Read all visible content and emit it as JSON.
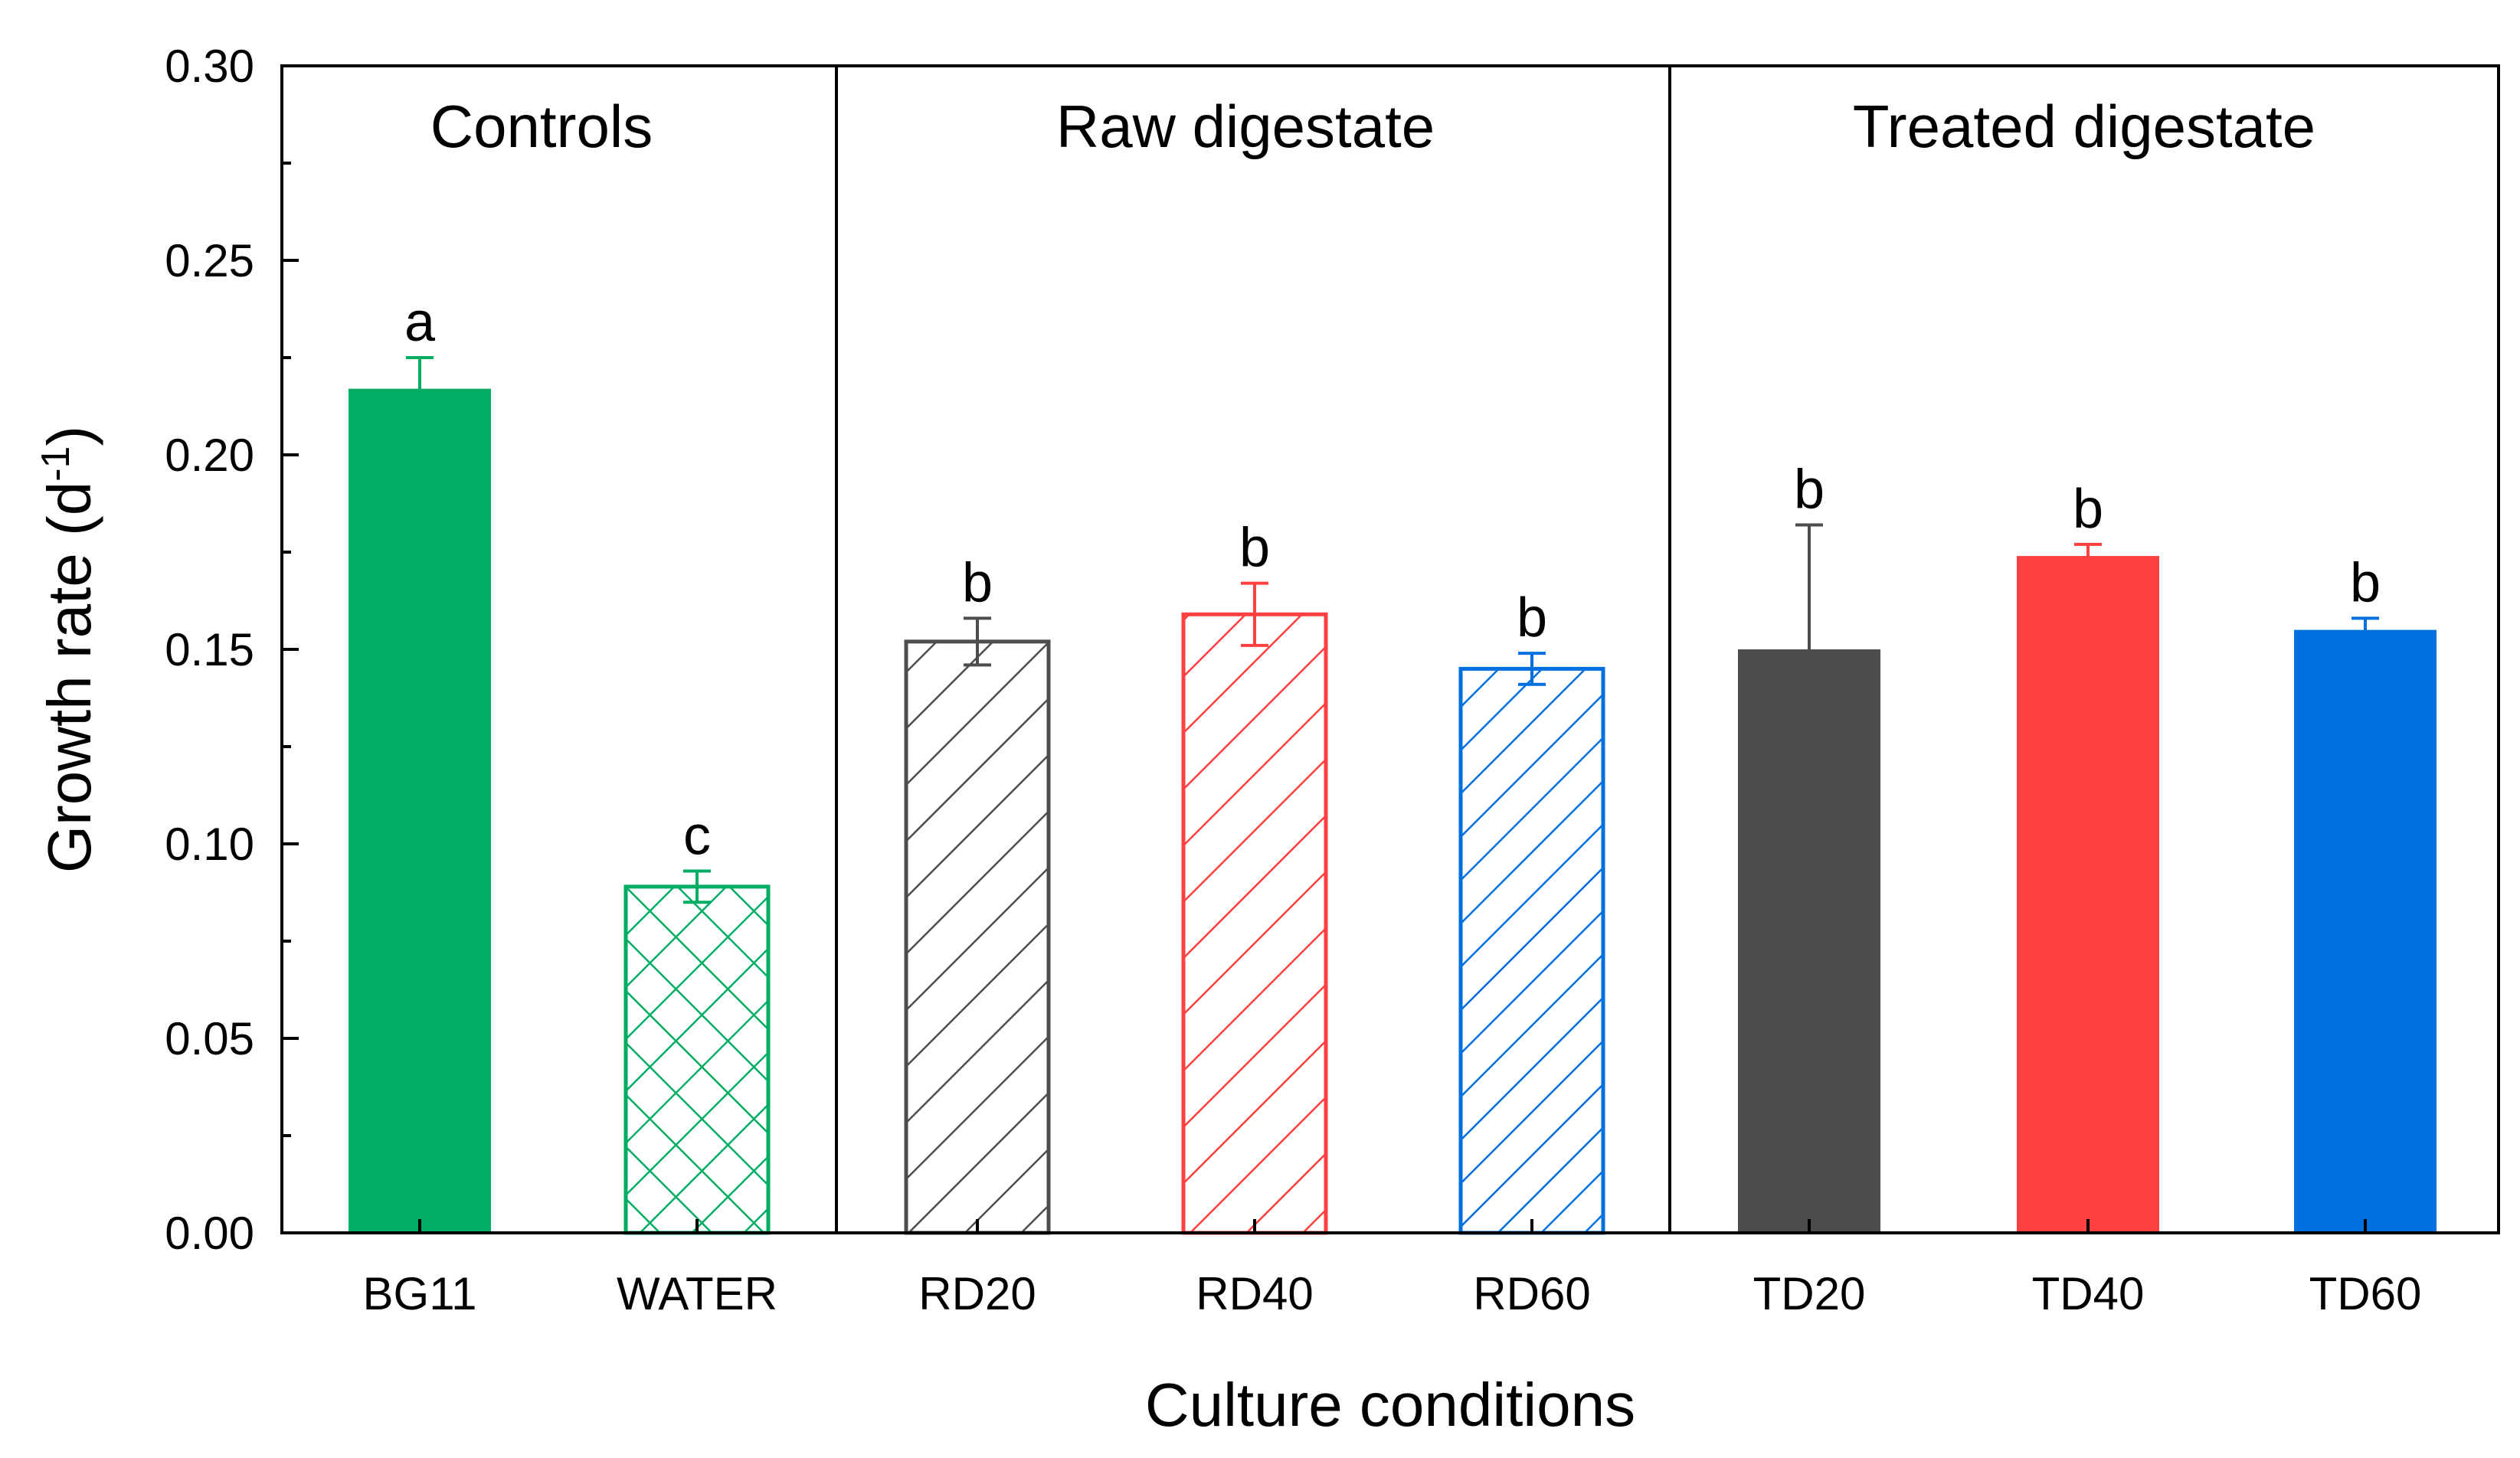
{
  "chart_data": {
    "type": "bar",
    "title": "",
    "xlabel": "Culture conditions",
    "ylabel": "Growth rate (d",
    "ylabel_superscript": "-1",
    "ylabel_suffix": ")",
    "ylim": [
      0,
      0.3
    ],
    "yticks": [
      "0.00",
      "0.05",
      "0.10",
      "0.15",
      "0.20",
      "0.25",
      "0.30"
    ],
    "groups": [
      {
        "label": "Controls",
        "categories": [
          "BG11",
          "WATER"
        ]
      },
      {
        "label": "Raw digestate",
        "categories": [
          "RD20",
          "RD40",
          "RD60"
        ]
      },
      {
        "label": "Treated digestate",
        "categories": [
          "TD20",
          "TD40",
          "TD60"
        ]
      }
    ],
    "categories": [
      "BG11",
      "WATER",
      "RD20",
      "RD40",
      "RD60",
      "TD20",
      "TD40",
      "TD60"
    ],
    "values": [
      0.217,
      0.089,
      0.152,
      0.159,
      0.145,
      0.15,
      0.174,
      0.155
    ],
    "errors": [
      0.008,
      0.004,
      0.006,
      0.008,
      0.004,
      0.032,
      0.003,
      0.003
    ],
    "significance": [
      "a",
      "c",
      "b",
      "b",
      "b",
      "b",
      "b",
      "b"
    ],
    "colors": [
      "#00AD62",
      "#00AD62",
      "#4D4D4D",
      "#FF4040",
      "#0070E0",
      "#4D4D4D",
      "#FF4040",
      "#0070E0"
    ],
    "fills": [
      "solid",
      "crosshatch",
      "hatch",
      "hatch",
      "hatch",
      "solid",
      "solid",
      "solid"
    ]
  }
}
